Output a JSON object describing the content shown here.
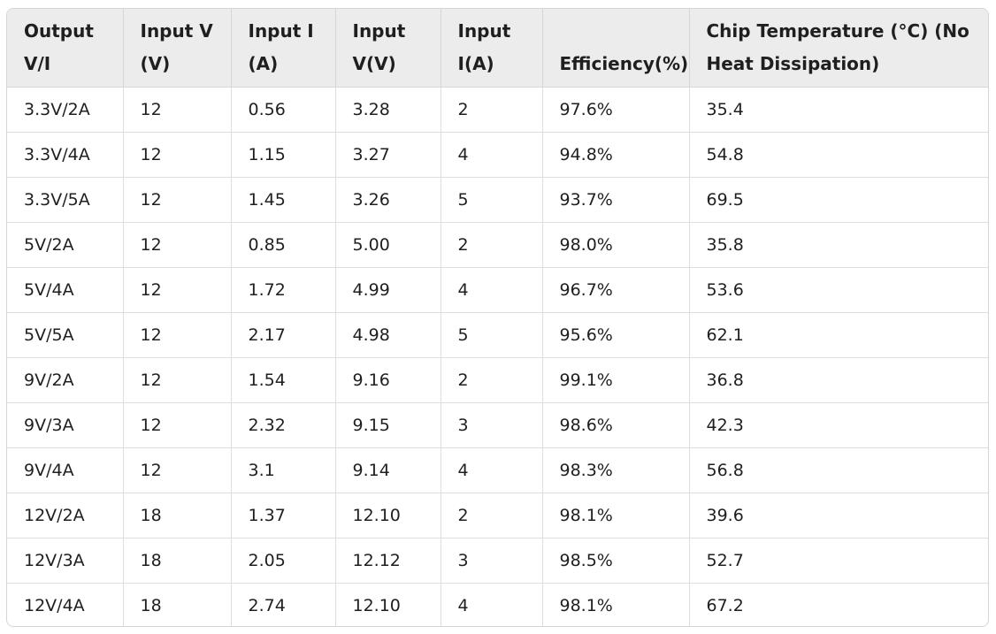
{
  "table": {
    "headers": [
      "Output V/I",
      "Input V (V)",
      "Input I (A)",
      "Input V(V)",
      "Input I(A)",
      "Efficiency(%)",
      "Chip Temperature (°C) (No Heat Dissipation)"
    ],
    "rows": [
      [
        "3.3V/2A",
        "12",
        "0.56",
        "3.28",
        "2",
        "97.6%",
        "35.4"
      ],
      [
        "3.3V/4A",
        "12",
        "1.15",
        "3.27",
        "4",
        "94.8%",
        "54.8"
      ],
      [
        "3.3V/5A",
        "12",
        "1.45",
        "3.26",
        "5",
        "93.7%",
        "69.5"
      ],
      [
        "5V/2A",
        "12",
        "0.85",
        "5.00",
        "2",
        "98.0%",
        "35.8"
      ],
      [
        "5V/4A",
        "12",
        "1.72",
        "4.99",
        "4",
        "96.7%",
        "53.6"
      ],
      [
        "5V/5A",
        "12",
        "2.17",
        "4.98",
        "5",
        "95.6%",
        "62.1"
      ],
      [
        "9V/2A",
        "12",
        "1.54",
        "9.16",
        "2",
        "99.1%",
        "36.8"
      ],
      [
        "9V/3A",
        "12",
        "2.32",
        "9.15",
        "3",
        "98.6%",
        "42.3"
      ],
      [
        "9V/4A",
        "12",
        "3.1",
        "9.14",
        "4",
        "98.3%",
        "56.8"
      ],
      [
        "12V/2A",
        "18",
        "1.37",
        "12.10",
        "2",
        "98.1%",
        "39.6"
      ],
      [
        "12V/3A",
        "18",
        "2.05",
        "12.12",
        "3",
        "98.5%",
        "52.7"
      ],
      [
        "12V/4A",
        "18",
        "2.74",
        "12.10",
        "4",
        "98.1%",
        "67.2"
      ]
    ]
  }
}
